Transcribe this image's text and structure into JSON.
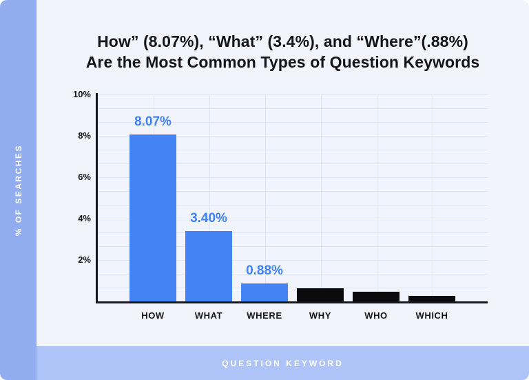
{
  "title": {
    "line1": "How” (8.07%), “What” (3.4%), and “Where”(.88%)",
    "line2": "Are the Most Common Types of Question Keywords"
  },
  "y_axis_title": "% OF SEARCHES",
  "x_axis_title": "QUESTION KEYWORD",
  "colors": {
    "bar_blue": "#4483F3",
    "bar_black": "#0b0b0d",
    "label_blue": "#3f83f6",
    "sidebar": "#92ACF0",
    "bottombar": "#AEC3F7",
    "background": "#F1F4FC",
    "axis": "#15171c",
    "gridline": "#dce7f7",
    "title_text": "#14161B",
    "text_white": "#ffffff"
  },
  "chart_data": {
    "type": "bar",
    "title": "How” (8.07%), “What” (3.4%), and “Where”(.88%) Are the Most Common Types of Question Keywords",
    "categories": [
      "HOW",
      "WHAT",
      "WHERE",
      "WHY",
      "WHO",
      "WHICH"
    ],
    "values": [
      8.07,
      3.4,
      0.88,
      0.63,
      0.47,
      0.28
    ],
    "value_labels": [
      "8.07%",
      "3.40%",
      "0.88%",
      "",
      "",
      ""
    ],
    "bar_colors": [
      "blue",
      "blue",
      "blue",
      "black",
      "black",
      "black"
    ],
    "yticks": [
      {
        "label": "10%",
        "value": 10
      },
      {
        "label": "8%",
        "value": 8
      },
      {
        "label": "6%",
        "value": 6
      },
      {
        "label": "4%",
        "value": 4
      },
      {
        "label": "2%",
        "value": 2
      }
    ],
    "ylim": [
      0,
      10
    ],
    "ylabel": "% OF SEARCHES",
    "xlabel": "QUESTION KEYWORD",
    "grid": true,
    "legend": "none"
  }
}
